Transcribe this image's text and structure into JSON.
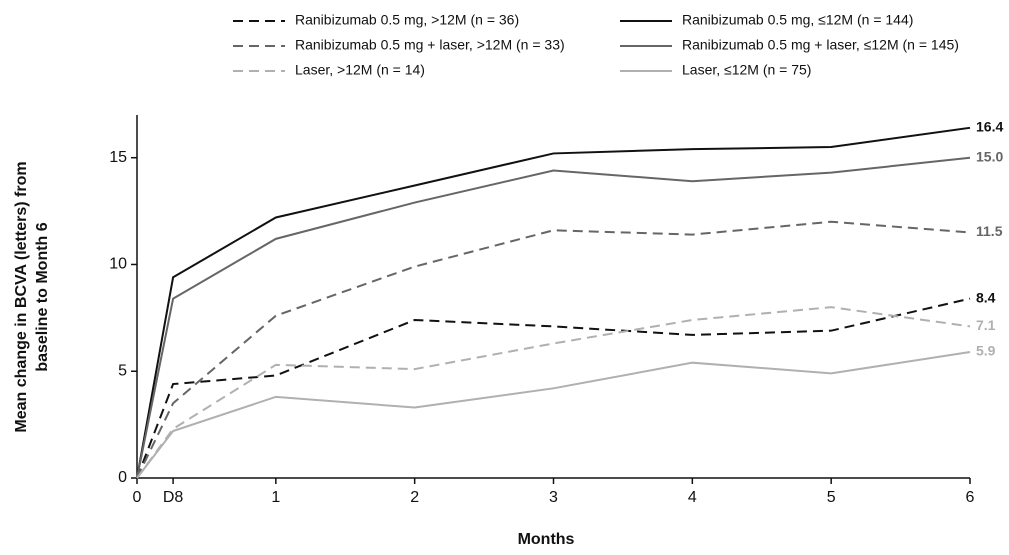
{
  "chart_data": {
    "type": "line",
    "xlabel": "Months",
    "ylabel": [
      "Mean change in BCVA (letters) from",
      "baseline to Month 6"
    ],
    "x": [
      0,
      0.26,
      1,
      2,
      3,
      4,
      5,
      6
    ],
    "xlim": [
      0,
      6
    ],
    "xticks": [
      0,
      {
        "value": 0.26,
        "label": "D8"
      },
      1,
      2,
      3,
      4,
      5,
      6
    ],
    "ylim": [
      0,
      17
    ],
    "yticks": [
      0,
      5,
      10,
      15
    ],
    "series": [
      {
        "name": "Ranibizumab 0.5 mg, >12M (n = 36)",
        "color": "#111111",
        "dashed": true,
        "values": [
          0,
          4.4,
          4.8,
          7.4,
          7.1,
          6.7,
          6.9,
          8.4
        ],
        "value_labels": [
          null,
          null,
          null,
          null,
          null,
          null,
          null,
          "8.4"
        ]
      },
      {
        "name": "Ranibizumab 0.5 mg + laser, >12M (n = 33)",
        "color": "#666666",
        "dashed": true,
        "values": [
          0,
          3.5,
          7.6,
          9.9,
          11.6,
          11.4,
          12.0,
          11.5
        ],
        "value_labels": [
          null,
          null,
          null,
          null,
          null,
          null,
          null,
          "11.5"
        ]
      },
      {
        "name": "Laser, >12M (n = 14)",
        "color": "#b0b0b0",
        "dashed": true,
        "values": [
          0,
          2.3,
          5.3,
          5.1,
          6.3,
          7.4,
          8.0,
          7.1
        ],
        "value_labels": [
          null,
          null,
          null,
          null,
          null,
          null,
          null,
          "7.1"
        ]
      },
      {
        "name": "Ranibizumab 0.5 mg, ≤12M (n = 144)",
        "color": "#111111",
        "dashed": false,
        "values": [
          0,
          9.4,
          12.2,
          13.7,
          15.2,
          15.4,
          15.5,
          16.4
        ],
        "value_labels": [
          null,
          null,
          null,
          null,
          null,
          null,
          null,
          "16.4"
        ]
      },
      {
        "name": "Ranibizumab 0.5 mg + laser, ≤12M (n = 145)",
        "color": "#666666",
        "dashed": false,
        "values": [
          0,
          8.4,
          11.2,
          12.9,
          14.4,
          13.9,
          14.3,
          15.0
        ],
        "value_labels": [
          null,
          null,
          null,
          null,
          null,
          null,
          null,
          "15.0"
        ]
      },
      {
        "name": "Laser, ≤12M (n = 75)",
        "color": "#b0b0b0",
        "dashed": false,
        "values": [
          0,
          2.2,
          3.8,
          3.3,
          4.2,
          5.4,
          4.9,
          5.9
        ],
        "value_labels": [
          null,
          null,
          null,
          null,
          null,
          null,
          null,
          "5.9"
        ]
      }
    ]
  }
}
